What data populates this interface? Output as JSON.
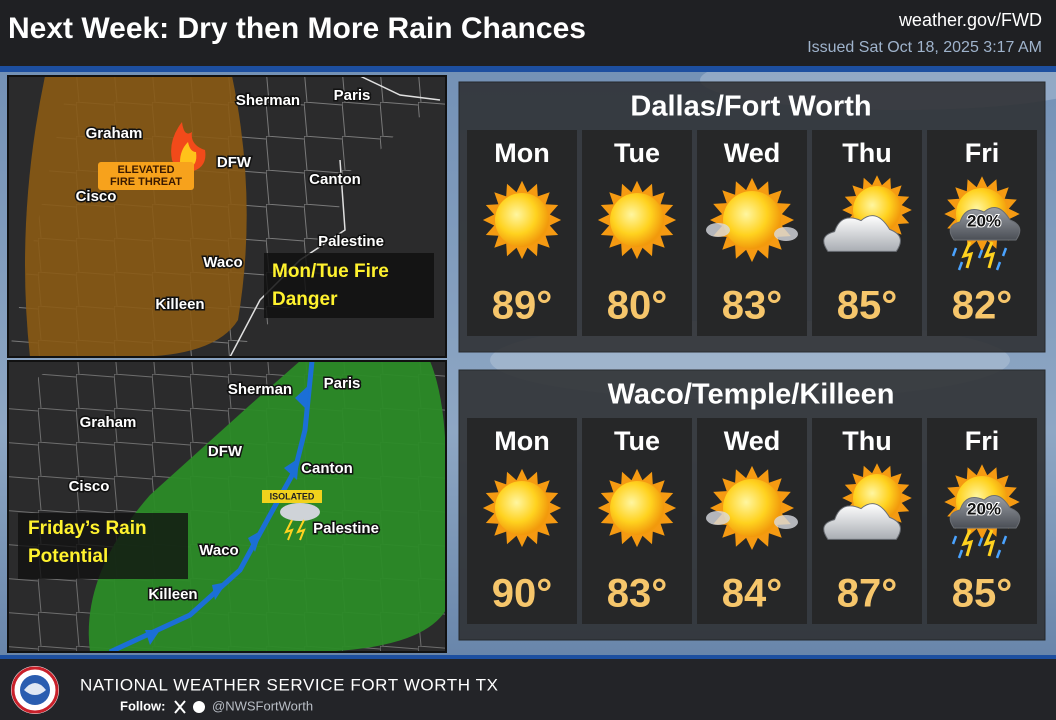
{
  "header": {
    "title": "Next Week: Dry then More Rain Chances",
    "website": "weather.gov/FWD",
    "issued": "Issued Sat Oct 18, 2025 3:17 AM"
  },
  "fire_map": {
    "cities": [
      "Sherman",
      "Paris",
      "Graham",
      "DFW",
      "Canton",
      "Cisco",
      "Palestine",
      "Waco",
      "Killeen"
    ],
    "badge": [
      "ELEVATED",
      "FIRE THREAT"
    ],
    "caption": [
      "Mon/Tue Fire",
      "Danger"
    ]
  },
  "rain_map": {
    "cities": [
      "Sherman",
      "Paris",
      "Graham",
      "DFW",
      "Canton",
      "Cisco",
      "Palestine",
      "Waco",
      "Killeen"
    ],
    "badge": [
      "ISOLATED"
    ],
    "caption": [
      "Friday’s Rain",
      "Potential"
    ]
  },
  "forecasts": [
    {
      "location": "Dallas/Fort Worth",
      "days": [
        {
          "day": "Mon",
          "temp": "89°"
        },
        {
          "day": "Tue",
          "temp": "80°"
        },
        {
          "day": "Wed",
          "temp": "83°"
        },
        {
          "day": "Thu",
          "temp": "85°"
        },
        {
          "day": "Fri",
          "temp": "82°",
          "rain_chance": "20%"
        }
      ]
    },
    {
      "location": "Waco/Temple/Killeen",
      "days": [
        {
          "day": "Mon",
          "temp": "90°"
        },
        {
          "day": "Tue",
          "temp": "83°"
        },
        {
          "day": "Wed",
          "temp": "84°"
        },
        {
          "day": "Thu",
          "temp": "87°"
        },
        {
          "day": "Fri",
          "temp": "85°",
          "rain_chance": "20%"
        }
      ]
    }
  ],
  "footer": {
    "office": "NATIONAL WEATHER SERVICE FORT WORTH TX",
    "follow": "Follow:",
    "handle": "@NWSFortWorth"
  }
}
